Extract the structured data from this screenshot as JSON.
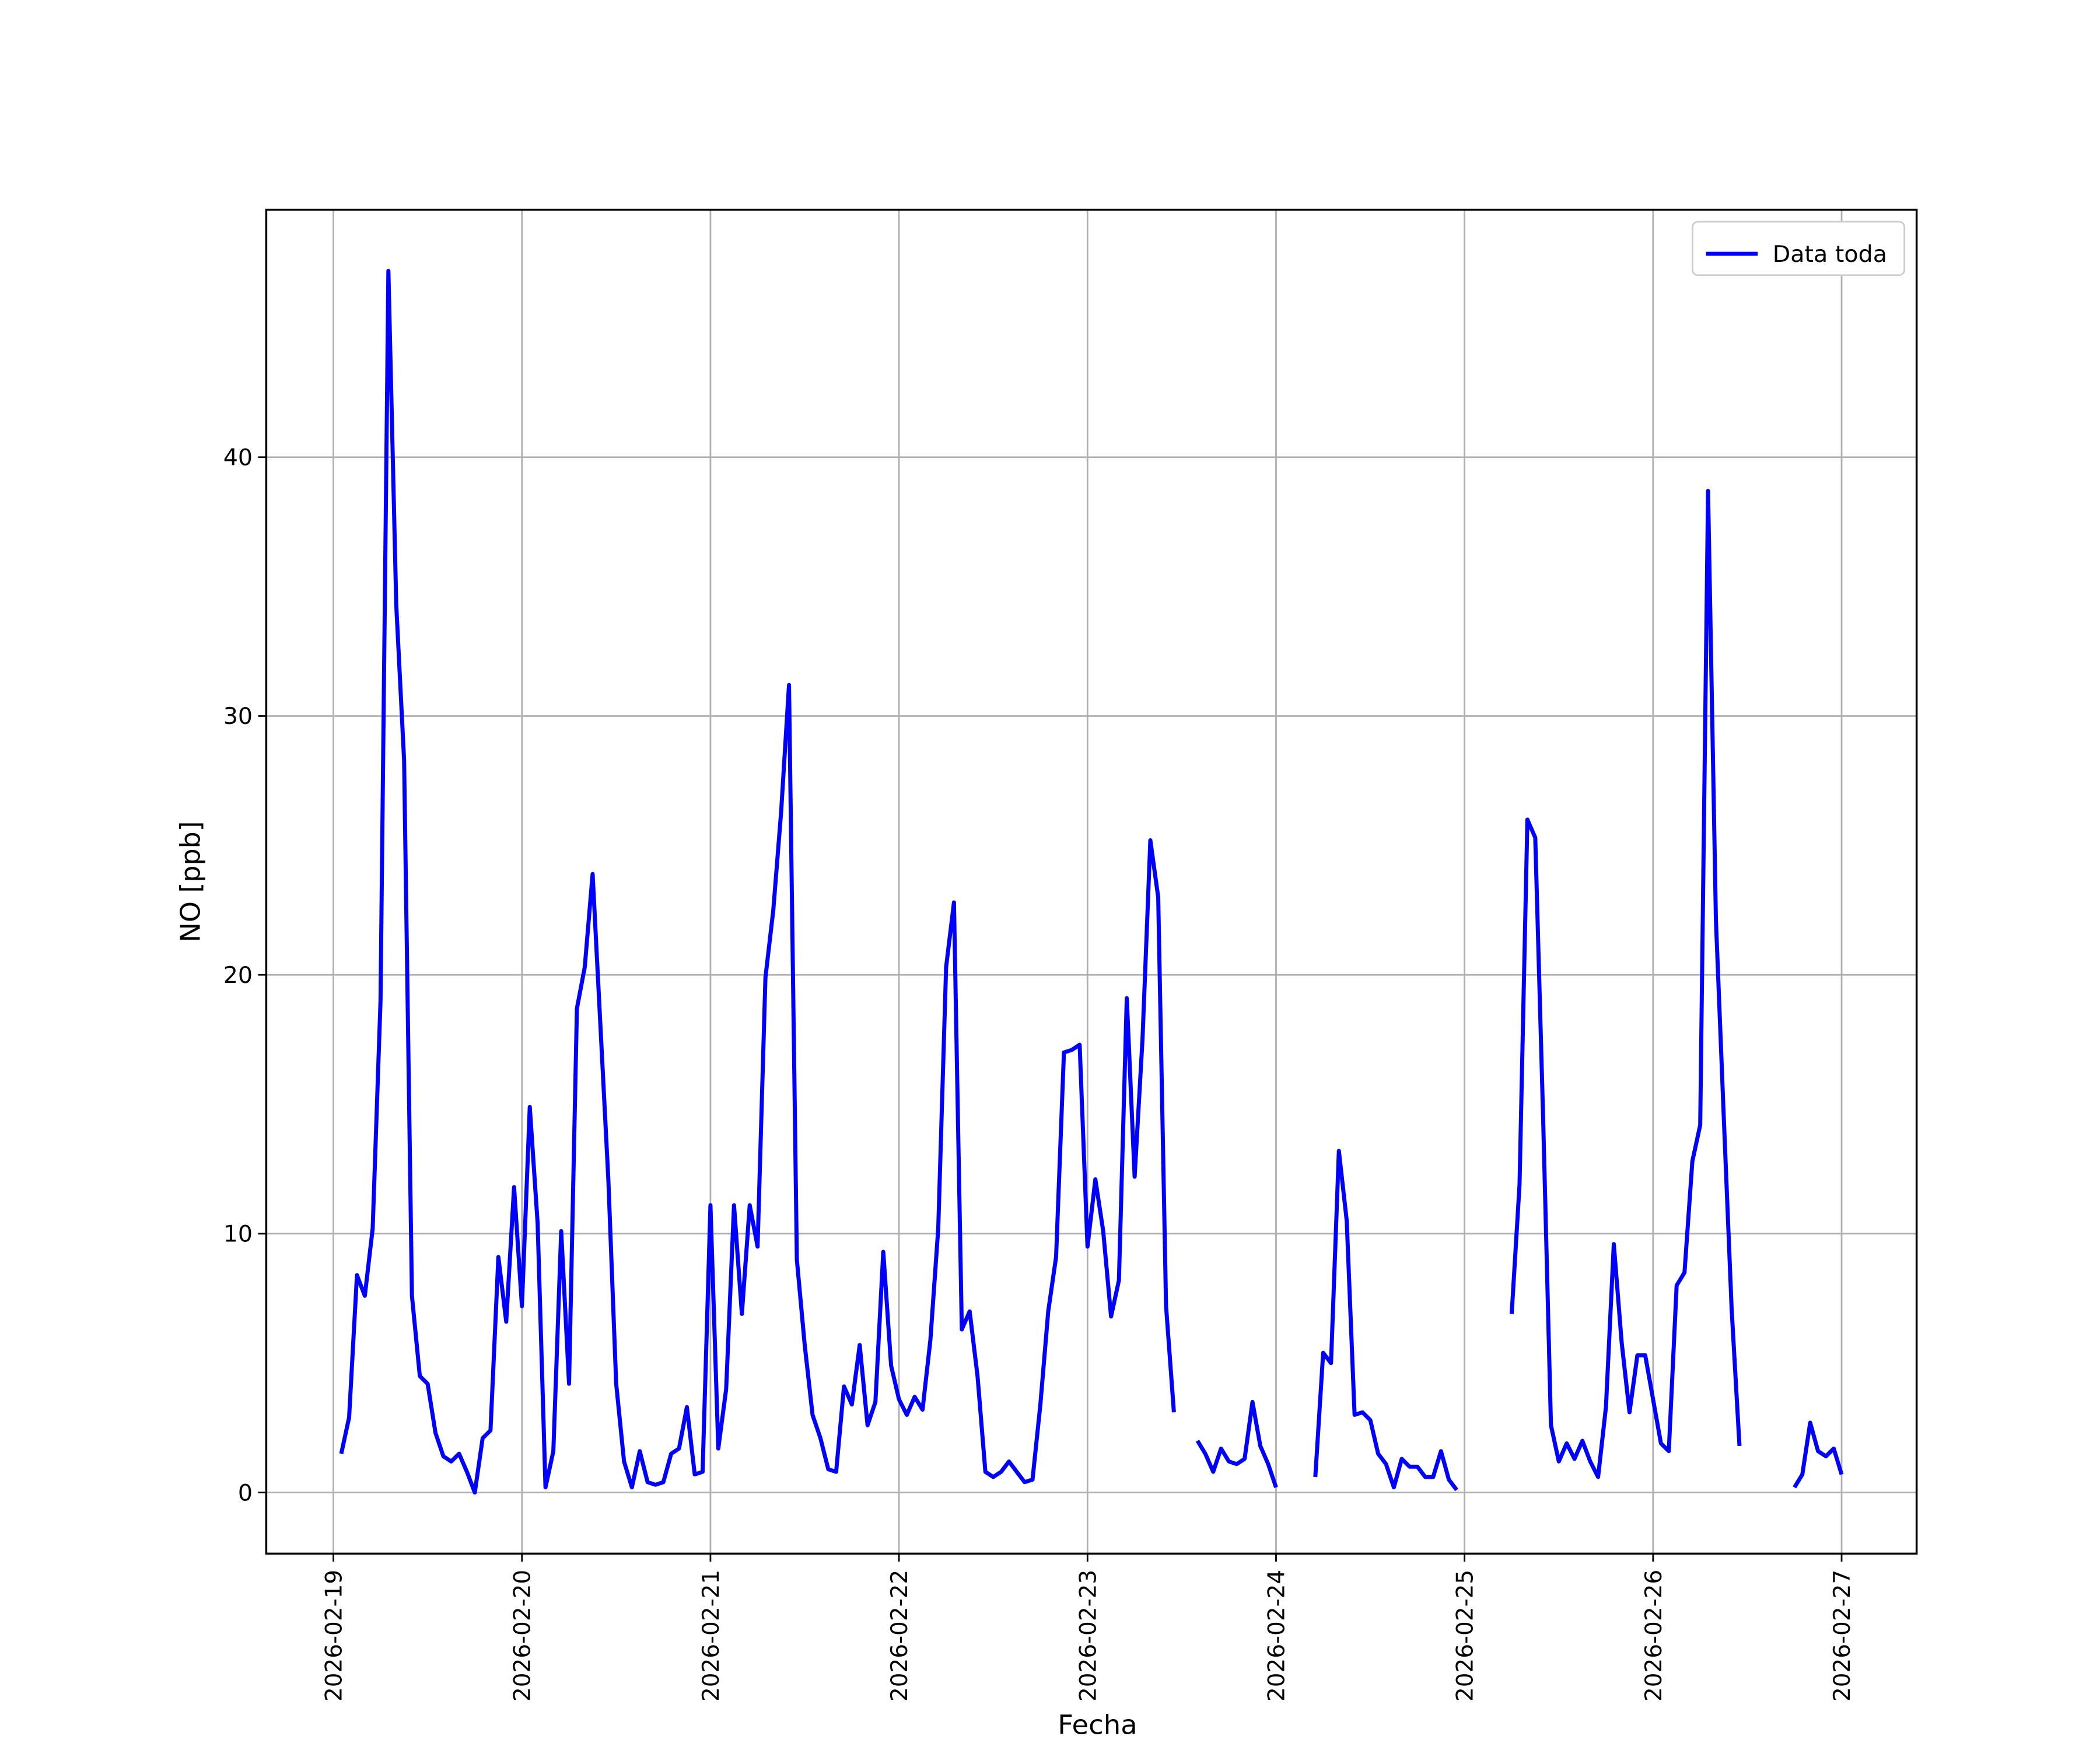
{
  "chart_data": {
    "type": "line",
    "ylabel": "NO [ppb]",
    "xlabel": "Fecha",
    "x": [
      "2026-02-19 01:00",
      "2026-02-19 02:00",
      "2026-02-19 03:00",
      "2026-02-19 04:00",
      "2026-02-19 05:00",
      "2026-02-19 06:00",
      "2026-02-19 07:00",
      "2026-02-19 08:00",
      "2026-02-19 09:00",
      "2026-02-19 10:00",
      "2026-02-19 11:00",
      "2026-02-19 12:00",
      "2026-02-19 13:00",
      "2026-02-19 14:00",
      "2026-02-19 15:00",
      "2026-02-19 16:00",
      "2026-02-19 17:00",
      "2026-02-19 18:00",
      "2026-02-19 19:00",
      "2026-02-19 20:00",
      "2026-02-19 21:00",
      "2026-02-19 22:00",
      "2026-02-19 23:00",
      "2026-02-20 00:00",
      "2026-02-20 01:00",
      "2026-02-20 02:00",
      "2026-02-20 03:00",
      "2026-02-20 04:00",
      "2026-02-20 05:00",
      "2026-02-20 06:00",
      "2026-02-20 07:00",
      "2026-02-20 08:00",
      "2026-02-20 09:00",
      "2026-02-20 10:00",
      "2026-02-20 11:00",
      "2026-02-20 12:00",
      "2026-02-20 13:00",
      "2026-02-20 14:00",
      "2026-02-20 15:00",
      "2026-02-20 16:00",
      "2026-02-20 17:00",
      "2026-02-20 18:00",
      "2026-02-20 19:00",
      "2026-02-20 20:00",
      "2026-02-20 21:00",
      "2026-02-20 22:00",
      "2026-02-20 23:00",
      "2026-02-21 00:00",
      "2026-02-21 01:00",
      "2026-02-21 02:00",
      "2026-02-21 03:00",
      "2026-02-21 04:00",
      "2026-02-21 05:00",
      "2026-02-21 06:00",
      "2026-02-21 07:00",
      "2026-02-21 08:00",
      "2026-02-21 09:00",
      "2026-02-21 10:00",
      "2026-02-21 11:00",
      "2026-02-21 12:00",
      "2026-02-21 13:00",
      "2026-02-21 14:00",
      "2026-02-21 15:00",
      "2026-02-21 16:00",
      "2026-02-21 17:00",
      "2026-02-21 18:00",
      "2026-02-21 19:00",
      "2026-02-21 20:00",
      "2026-02-21 21:00",
      "2026-02-21 22:00",
      "2026-02-21 23:00",
      "2026-02-22 00:00",
      "2026-02-22 01:00",
      "2026-02-22 02:00",
      "2026-02-22 03:00",
      "2026-02-22 04:00",
      "2026-02-22 05:00",
      "2026-02-22 06:00",
      "2026-02-22 07:00",
      "2026-02-22 08:00",
      "2026-02-22 09:00",
      "2026-02-22 10:00",
      "2026-02-22 11:00",
      "2026-02-22 12:00",
      "2026-02-22 13:00",
      "2026-02-22 14:00",
      "2026-02-22 15:00",
      "2026-02-22 16:00",
      "2026-02-22 17:00",
      "2026-02-22 18:00",
      "2026-02-22 19:00",
      "2026-02-22 20:00",
      "2026-02-22 21:00",
      "2026-02-22 22:00",
      "2026-02-22 23:00",
      "2026-02-23 00:00",
      "2026-02-23 01:00",
      "2026-02-23 02:00",
      "2026-02-23 03:00",
      "2026-02-23 04:00",
      "2026-02-23 05:00",
      "2026-02-23 06:00",
      "2026-02-23 07:00",
      "2026-02-23 08:00",
      "2026-02-23 09:00",
      "2026-02-23 10:00",
      "2026-02-23 11:00",
      "2026-02-23 12:00",
      "2026-02-23 13:00",
      "2026-02-23 14:00",
      "2026-02-23 15:00",
      "2026-02-23 16:00",
      "2026-02-23 17:00",
      "2026-02-23 18:00",
      "2026-02-23 19:00",
      "2026-02-23 20:00",
      "2026-02-23 21:00",
      "2026-02-23 22:00",
      "2026-02-23 23:00",
      "2026-02-24 00:00",
      "2026-02-24 01:00",
      "2026-02-24 02:00",
      "2026-02-24 03:00",
      "2026-02-24 04:00",
      "2026-02-24 05:00",
      "2026-02-24 06:00",
      "2026-02-24 07:00",
      "2026-02-24 08:00",
      "2026-02-24 09:00",
      "2026-02-24 10:00",
      "2026-02-24 11:00",
      "2026-02-24 12:00",
      "2026-02-24 13:00",
      "2026-02-24 14:00",
      "2026-02-24 15:00",
      "2026-02-24 16:00",
      "2026-02-24 17:00",
      "2026-02-24 18:00",
      "2026-02-24 19:00",
      "2026-02-24 20:00",
      "2026-02-24 21:00",
      "2026-02-24 22:00",
      "2026-02-24 23:00",
      "2026-02-25 00:00",
      "2026-02-25 01:00",
      "2026-02-25 02:00",
      "2026-02-25 03:00",
      "2026-02-25 04:00",
      "2026-02-25 05:00",
      "2026-02-25 06:00",
      "2026-02-25 07:00",
      "2026-02-25 08:00",
      "2026-02-25 09:00",
      "2026-02-25 10:00",
      "2026-02-25 11:00",
      "2026-02-25 12:00",
      "2026-02-25 13:00",
      "2026-02-25 14:00",
      "2026-02-25 15:00",
      "2026-02-25 16:00",
      "2026-02-25 17:00",
      "2026-02-25 18:00",
      "2026-02-25 19:00",
      "2026-02-25 20:00",
      "2026-02-25 21:00",
      "2026-02-25 22:00",
      "2026-02-25 23:00",
      "2026-02-26 00:00",
      "2026-02-26 01:00",
      "2026-02-26 02:00",
      "2026-02-26 03:00",
      "2026-02-26 04:00",
      "2026-02-26 05:00",
      "2026-02-26 06:00",
      "2026-02-26 07:00",
      "2026-02-26 08:00",
      "2026-02-26 09:00",
      "2026-02-26 10:00",
      "2026-02-26 11:00",
      "2026-02-26 12:00",
      "2026-02-26 13:00",
      "2026-02-26 14:00",
      "2026-02-26 15:00",
      "2026-02-26 16:00",
      "2026-02-26 17:00",
      "2026-02-26 18:00",
      "2026-02-26 19:00",
      "2026-02-26 20:00",
      "2026-02-26 21:00",
      "2026-02-26 22:00",
      "2026-02-26 23:00",
      "2026-02-27 00:00"
    ],
    "series": [
      {
        "name": "Data toda",
        "color": "#0000ff",
        "values": [
          1.5,
          2.9,
          8.4,
          7.6,
          10.2,
          19,
          47.2,
          34.3,
          28.3,
          7.6,
          4.5,
          4.2,
          2.3,
          1.4,
          1.2,
          1.5,
          0.8,
          0,
          2.1,
          2.4,
          9.1,
          6.6,
          11.8,
          7.2,
          14.9,
          10.4,
          0.2,
          1.6,
          10.1,
          4.2,
          18.7,
          20.3,
          23.9,
          18,
          12.1,
          4.2,
          1.2,
          0.2,
          1.6,
          0.4,
          0.3,
          0.4,
          1.5,
          1.7,
          3.3,
          0.7,
          0.8,
          11.1,
          1.7,
          4,
          11.1,
          6.9,
          11.1,
          9.5,
          19.9,
          22.5,
          26.3,
          31.2,
          9,
          5.7,
          3,
          2.1,
          0.9,
          0.8,
          4.1,
          3.4,
          5.7,
          2.6,
          3.5,
          9.3,
          4.9,
          3.6,
          3,
          3.7,
          3.2,
          5.9,
          10.2,
          20.3,
          22.8,
          6.3,
          7,
          4.5,
          0.8,
          0.6,
          0.8,
          1.2,
          0.8,
          0.4,
          0.5,
          3.4,
          7,
          9.1,
          17,
          17.1,
          17.3,
          9.5,
          12.1,
          10.1,
          6.8,
          8.2,
          19.1,
          12.2,
          17.5,
          25.2,
          23,
          7.2,
          3.1,
          null,
          null,
          2,
          1.5,
          0.8,
          1.7,
          1.2,
          1.1,
          1.3,
          3.5,
          1.8,
          1.1,
          0.2,
          null,
          null,
          null,
          null,
          0.6,
          5.4,
          5,
          13.2,
          10.5,
          3,
          3.1,
          2.8,
          1.5,
          1.1,
          0.2,
          1.3,
          1,
          1,
          0.6,
          0.6,
          1.6,
          0.5,
          0.1,
          null,
          null,
          null,
          null,
          null,
          null,
          6.9,
          11.9,
          26,
          25.3,
          14.5,
          2.6,
          1.2,
          1.9,
          1.3,
          2,
          1.2,
          0.6,
          3.3,
          9.6,
          5.8,
          3.1,
          5.3,
          5.3,
          3.6,
          1.9,
          1.6,
          8,
          8.5,
          12.8,
          14.2,
          38.7,
          22.1,
          14.5,
          7.1,
          1.8,
          null,
          null,
          null,
          null,
          null,
          null,
          0.2,
          0.7,
          2.7,
          1.6,
          1.4,
          1.7,
          0.7
        ]
      }
    ],
    "xlim": [
      "2026-02-18 15:27",
      "2026-02-27 09:33"
    ],
    "xticks": [
      "2026-02-19",
      "2026-02-20",
      "2026-02-21",
      "2026-02-22",
      "2026-02-23",
      "2026-02-24",
      "2026-02-25",
      "2026-02-26",
      "2026-02-27"
    ],
    "ylim": [
      -2.36,
      49.56
    ],
    "yticks": [
      0,
      10,
      20,
      30,
      40
    ],
    "grid": true,
    "legend": "upper right"
  }
}
